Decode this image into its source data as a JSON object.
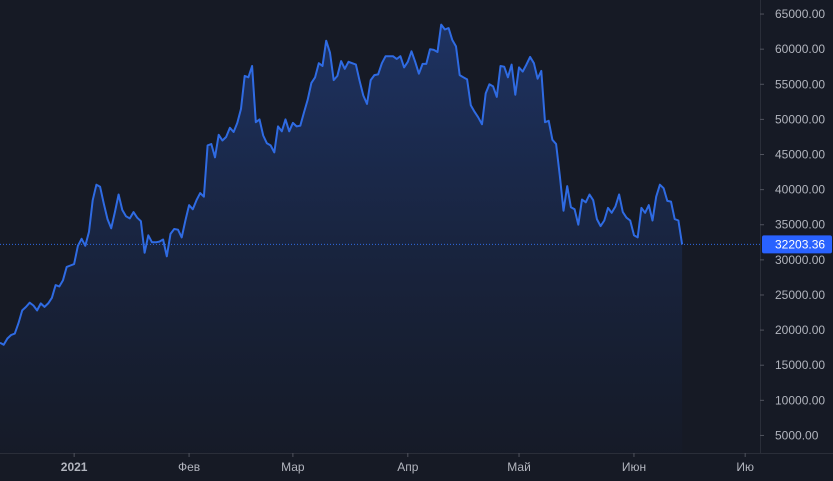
{
  "chart_data": {
    "type": "area",
    "title": "",
    "xlabel": "",
    "ylabel": "",
    "ylim": [
      2500,
      67000
    ],
    "y_scale": "linear",
    "grid": false,
    "legend": "none",
    "y_ticks": [
      5000,
      10000,
      15000,
      20000,
      25000,
      30000,
      35000,
      40000,
      45000,
      50000,
      55000,
      60000,
      65000
    ],
    "y_tick_labels": [
      "5000.00",
      "10000.00",
      "15000.00",
      "20000.00",
      "25000.00",
      "30000.00",
      "35000.00",
      "40000.00",
      "45000.00",
      "50000.00",
      "55000.00",
      "60000.00",
      "65000.00"
    ],
    "x_tick_labels": [
      {
        "label": "2021",
        "day": 10,
        "bold": true
      },
      {
        "label": "Фев",
        "day": 41,
        "bold": false
      },
      {
        "label": "Мар",
        "day": 69,
        "bold": false
      },
      {
        "label": "Апр",
        "day": 100,
        "bold": false
      },
      {
        "label": "Май",
        "day": 130,
        "bold": false
      },
      {
        "label": "Июн",
        "day": 161,
        "bold": false
      },
      {
        "label": "Ию",
        "day": 191,
        "bold": false
      }
    ],
    "x_range": [
      -10,
      195
    ],
    "last_value": 32203.36,
    "last_value_label": "32203.36",
    "series": [
      {
        "values": [
          [
            -10,
            18200
          ],
          [
            -9,
            17900
          ],
          [
            -8,
            18800
          ],
          [
            -7,
            19300
          ],
          [
            -6,
            19500
          ],
          [
            -5,
            21000
          ],
          [
            -4,
            22800
          ],
          [
            -3,
            23300
          ],
          [
            -2,
            23900
          ],
          [
            -1,
            23500
          ],
          [
            0,
            22800
          ],
          [
            1,
            23800
          ],
          [
            2,
            23300
          ],
          [
            3,
            23800
          ],
          [
            4,
            24600
          ],
          [
            5,
            26400
          ],
          [
            6,
            26200
          ],
          [
            7,
            27100
          ],
          [
            8,
            29000
          ],
          [
            9,
            29200
          ],
          [
            10,
            29400
          ],
          [
            11,
            32000
          ],
          [
            12,
            33000
          ],
          [
            13,
            32000
          ],
          [
            14,
            34000
          ],
          [
            15,
            38500
          ],
          [
            16,
            40700
          ],
          [
            17,
            40400
          ],
          [
            18,
            38000
          ],
          [
            19,
            35800
          ],
          [
            20,
            34500
          ],
          [
            21,
            36800
          ],
          [
            22,
            39300
          ],
          [
            23,
            37100
          ],
          [
            24,
            36200
          ],
          [
            25,
            35900
          ],
          [
            26,
            36800
          ],
          [
            27,
            36000
          ],
          [
            28,
            35500
          ],
          [
            29,
            31000
          ],
          [
            30,
            33500
          ],
          [
            31,
            32500
          ],
          [
            32,
            32500
          ],
          [
            33,
            32600
          ],
          [
            34,
            32900
          ],
          [
            35,
            30500
          ],
          [
            36,
            33700
          ],
          [
            37,
            34400
          ],
          [
            38,
            34300
          ],
          [
            39,
            33200
          ],
          [
            40,
            35600
          ],
          [
            41,
            37800
          ],
          [
            42,
            37200
          ],
          [
            43,
            38500
          ],
          [
            44,
            39500
          ],
          [
            45,
            39000
          ],
          [
            46,
            46300
          ],
          [
            47,
            46500
          ],
          [
            48,
            44600
          ],
          [
            49,
            47800
          ],
          [
            50,
            47000
          ],
          [
            51,
            47500
          ],
          [
            52,
            48800
          ],
          [
            53,
            48200
          ],
          [
            54,
            49500
          ],
          [
            55,
            51500
          ],
          [
            56,
            56200
          ],
          [
            57,
            56000
          ],
          [
            58,
            57600
          ],
          [
            59,
            49600
          ],
          [
            60,
            50000
          ],
          [
            61,
            47700
          ],
          [
            62,
            46600
          ],
          [
            63,
            46300
          ],
          [
            64,
            45300
          ],
          [
            65,
            49000
          ],
          [
            66,
            48300
          ],
          [
            67,
            50000
          ],
          [
            68,
            48300
          ],
          [
            69,
            49500
          ],
          [
            70,
            49000
          ],
          [
            71,
            49100
          ],
          [
            72,
            51000
          ],
          [
            73,
            52800
          ],
          [
            74,
            55200
          ],
          [
            75,
            56000
          ],
          [
            76,
            58000
          ],
          [
            77,
            57600
          ],
          [
            78,
            61200
          ],
          [
            79,
            59500
          ],
          [
            80,
            55600
          ],
          [
            81,
            56200
          ],
          [
            82,
            58300
          ],
          [
            83,
            57200
          ],
          [
            84,
            58200
          ],
          [
            85,
            58000
          ],
          [
            86,
            57800
          ],
          [
            87,
            55500
          ],
          [
            88,
            53400
          ],
          [
            89,
            52200
          ],
          [
            90,
            55600
          ],
          [
            91,
            56300
          ],
          [
            92,
            56400
          ],
          [
            93,
            58000
          ],
          [
            94,
            59000
          ],
          [
            95,
            59000
          ],
          [
            96,
            59000
          ],
          [
            97,
            58600
          ],
          [
            98,
            59000
          ],
          [
            99,
            57400
          ],
          [
            100,
            58200
          ],
          [
            101,
            59700
          ],
          [
            102,
            58200
          ],
          [
            103,
            56500
          ],
          [
            104,
            57900
          ],
          [
            105,
            57900
          ],
          [
            106,
            60000
          ],
          [
            107,
            59900
          ],
          [
            108,
            59600
          ],
          [
            109,
            63500
          ],
          [
            110,
            62800
          ],
          [
            111,
            63000
          ],
          [
            112,
            61300
          ],
          [
            113,
            60400
          ],
          [
            114,
            56300
          ],
          [
            115,
            56000
          ],
          [
            116,
            55700
          ],
          [
            117,
            52000
          ],
          [
            118,
            51100
          ],
          [
            119,
            50300
          ],
          [
            120,
            49300
          ],
          [
            121,
            53700
          ],
          [
            122,
            55000
          ],
          [
            123,
            54700
          ],
          [
            124,
            53200
          ],
          [
            125,
            57600
          ],
          [
            126,
            57500
          ],
          [
            127,
            56000
          ],
          [
            128,
            57800
          ],
          [
            129,
            53500
          ],
          [
            130,
            57400
          ],
          [
            131,
            56800
          ],
          [
            132,
            57800
          ],
          [
            133,
            58900
          ],
          [
            134,
            58000
          ],
          [
            135,
            55800
          ],
          [
            136,
            56900
          ],
          [
            137,
            49600
          ],
          [
            138,
            49800
          ],
          [
            139,
            47100
          ],
          [
            140,
            46500
          ],
          [
            141,
            42000
          ],
          [
            142,
            37000
          ],
          [
            143,
            40500
          ],
          [
            144,
            37500
          ],
          [
            145,
            37200
          ],
          [
            146,
            35000
          ],
          [
            147,
            38600
          ],
          [
            148,
            38200
          ],
          [
            149,
            39300
          ],
          [
            150,
            38500
          ],
          [
            151,
            35800
          ],
          [
            152,
            34800
          ],
          [
            153,
            35600
          ],
          [
            154,
            37400
          ],
          [
            155,
            36700
          ],
          [
            156,
            37600
          ],
          [
            157,
            39300
          ],
          [
            158,
            36800
          ],
          [
            159,
            36000
          ],
          [
            160,
            35600
          ],
          [
            161,
            33500
          ],
          [
            162,
            33200
          ],
          [
            163,
            37400
          ],
          [
            164,
            36700
          ],
          [
            165,
            37800
          ],
          [
            166,
            35600
          ],
          [
            167,
            39000
          ],
          [
            168,
            40700
          ],
          [
            169,
            40200
          ],
          [
            170,
            38400
          ],
          [
            171,
            38300
          ],
          [
            172,
            35800
          ],
          [
            173,
            35600
          ],
          [
            174,
            32200
          ]
        ]
      }
    ],
    "colors": {
      "background": "#161a25",
      "line": "#2f6be3",
      "area_top": "#1e3466",
      "area_bottom": "#151b2a",
      "tick_text": "#b2b5be",
      "axis_line": "#2a2e39",
      "price_label_bg": "#2962ff",
      "price_label_text": "#ffffff"
    }
  }
}
